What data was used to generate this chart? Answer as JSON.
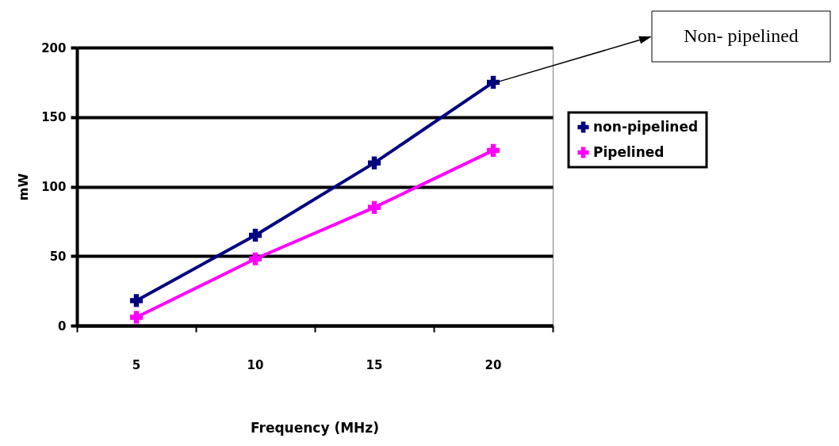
{
  "chart_data": {
    "type": "line",
    "categories": [
      "5",
      "10",
      "15",
      "20"
    ],
    "xlabel": "Frequency (MHz)",
    "ylabel": "mW",
    "series": [
      {
        "name": "non-pipelined",
        "color": "#000080",
        "values": [
          18,
          65,
          117,
          175
        ]
      },
      {
        "name": "Pipelined",
        "color": "#ff00ff",
        "values": [
          6,
          48,
          85,
          126
        ]
      }
    ],
    "ylim": [
      0,
      200
    ],
    "yticks": [
      0,
      50,
      100,
      150,
      200
    ],
    "grid": "y",
    "legend": "right",
    "marker": "cross",
    "line_style": "solid",
    "annotations": [
      "Non- pipelined"
    ]
  }
}
